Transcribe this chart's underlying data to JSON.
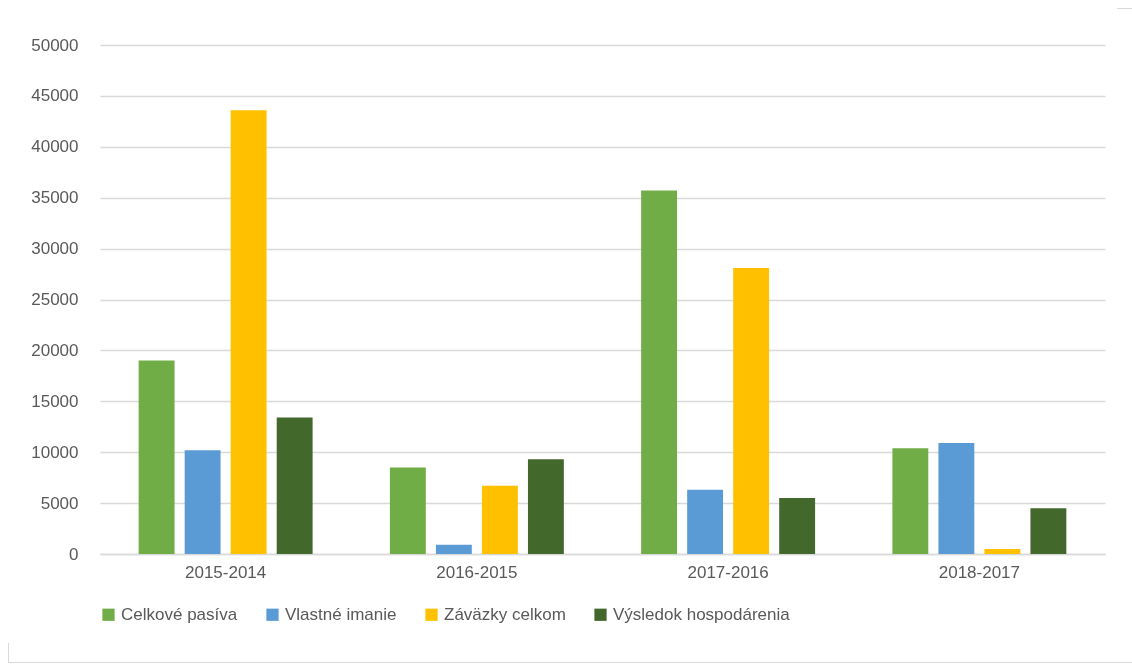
{
  "chart_data": {
    "type": "bar",
    "categories": [
      "2015-2014",
      "2016-2015",
      "2017-2016",
      "2018-2017"
    ],
    "series": [
      {
        "name": "Celkové pasíva",
        "color": "#70ad47",
        "values": [
          19000,
          8500,
          35700,
          10400
        ]
      },
      {
        "name": "Vlastné imanie",
        "color": "#5b9bd5",
        "values": [
          10200,
          900,
          6300,
          10900
        ]
      },
      {
        "name": "Záväzky celkom",
        "color": "#ffc000",
        "values": [
          43600,
          6700,
          28100,
          500
        ]
      },
      {
        "name": "Výsledok hospodárenia",
        "color": "#43682b",
        "values": [
          13400,
          9300,
          5500,
          4500
        ]
      }
    ],
    "ylim": [
      0,
      50000
    ],
    "yticks": [
      0,
      5000,
      10000,
      15000,
      20000,
      25000,
      30000,
      35000,
      40000,
      45000,
      50000
    ],
    "grid": "y",
    "legend": "bottom"
  }
}
